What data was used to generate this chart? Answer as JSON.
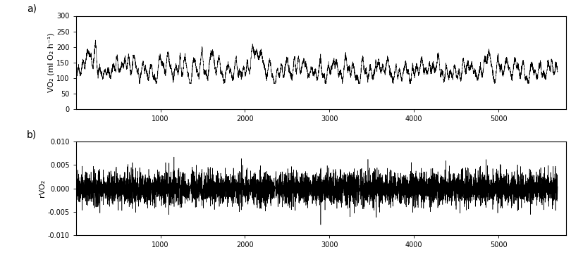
{
  "panel_a_label": "a)",
  "panel_b_label": "b)",
  "ylabel_a": "VO₂ (ml O₂ h⁻¹)",
  "ylabel_b": "rVO₂",
  "xlabel": "",
  "xlim": [
    0,
    5800
  ],
  "ylim_a": [
    0,
    300
  ],
  "ylim_b": [
    -0.01,
    0.01
  ],
  "yticks_a": [
    0,
    50,
    100,
    150,
    200,
    250,
    300
  ],
  "yticks_b": [
    -0.01,
    -0.005,
    0.0,
    0.005,
    0.01
  ],
  "xticks": [
    1000,
    2000,
    3000,
    4000,
    5000
  ],
  "n_points": 5700,
  "base_vo2": 115,
  "line_color": "#000000",
  "background_color": "#ffffff",
  "fig_width": 8.28,
  "fig_height": 3.75,
  "seed": 42
}
